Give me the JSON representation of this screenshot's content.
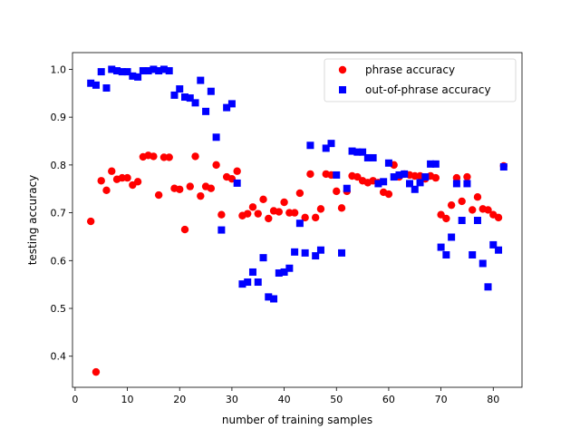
{
  "chart_data": {
    "type": "scatter",
    "xlabel": "number of training samples",
    "ylabel": "testing accuracy",
    "xlim": [
      -0.5,
      85.5
    ],
    "ylim": [
      0.335,
      1.035
    ],
    "xticks": [
      0,
      10,
      20,
      30,
      40,
      50,
      60,
      70,
      80
    ],
    "yticks": [
      0.4,
      0.5,
      0.6,
      0.7,
      0.8,
      0.9,
      1.0
    ],
    "ytick_labels": [
      "0.4",
      "0.5",
      "0.6",
      "0.7",
      "0.8",
      "0.9",
      "1.0"
    ],
    "grid": false,
    "legend_position": "top-right",
    "series": [
      {
        "name": "phrase accuracy",
        "marker": "circle",
        "color": "#ff0000",
        "points": [
          [
            3,
            0.682
          ],
          [
            4,
            0.367
          ],
          [
            5,
            0.767
          ],
          [
            6,
            0.747
          ],
          [
            7,
            0.787
          ],
          [
            8,
            0.77
          ],
          [
            9,
            0.773
          ],
          [
            10,
            0.773
          ],
          [
            11,
            0.758
          ],
          [
            12,
            0.765
          ],
          [
            13,
            0.817
          ],
          [
            14,
            0.82
          ],
          [
            15,
            0.818
          ],
          [
            16,
            0.737
          ],
          [
            17,
            0.816
          ],
          [
            18,
            0.816
          ],
          [
            19,
            0.751
          ],
          [
            20,
            0.749
          ],
          [
            21,
            0.665
          ],
          [
            22,
            0.755
          ],
          [
            23,
            0.818
          ],
          [
            24,
            0.735
          ],
          [
            25,
            0.755
          ],
          [
            26,
            0.751
          ],
          [
            27,
            0.8
          ],
          [
            28,
            0.696
          ],
          [
            29,
            0.775
          ],
          [
            30,
            0.771
          ],
          [
            31,
            0.787
          ],
          [
            32,
            0.694
          ],
          [
            33,
            0.698
          ],
          [
            34,
            0.712
          ],
          [
            35,
            0.698
          ],
          [
            36,
            0.728
          ],
          [
            37,
            0.688
          ],
          [
            38,
            0.704
          ],
          [
            39,
            0.702
          ],
          [
            40,
            0.722
          ],
          [
            41,
            0.7
          ],
          [
            42,
            0.7
          ],
          [
            43,
            0.741
          ],
          [
            44,
            0.69
          ],
          [
            45,
            0.781
          ],
          [
            46,
            0.69
          ],
          [
            47,
            0.708
          ],
          [
            48,
            0.781
          ],
          [
            49,
            0.779
          ],
          [
            50,
            0.745
          ],
          [
            51,
            0.71
          ],
          [
            52,
            0.745
          ],
          [
            53,
            0.777
          ],
          [
            54,
            0.775
          ],
          [
            55,
            0.767
          ],
          [
            56,
            0.763
          ],
          [
            57,
            0.767
          ],
          [
            58,
            0.763
          ],
          [
            59,
            0.743
          ],
          [
            60,
            0.739
          ],
          [
            61,
            0.8
          ],
          [
            62,
            0.775
          ],
          [
            63,
            0.781
          ],
          [
            64,
            0.779
          ],
          [
            65,
            0.777
          ],
          [
            66,
            0.777
          ],
          [
            67,
            0.771
          ],
          [
            68,
            0.777
          ],
          [
            69,
            0.773
          ],
          [
            70,
            0.696
          ],
          [
            71,
            0.688
          ],
          [
            72,
            0.716
          ],
          [
            73,
            0.773
          ],
          [
            74,
            0.724
          ],
          [
            75,
            0.775
          ],
          [
            76,
            0.706
          ],
          [
            77,
            0.733
          ],
          [
            78,
            0.708
          ],
          [
            79,
            0.706
          ],
          [
            80,
            0.696
          ],
          [
            81,
            0.69
          ],
          [
            82,
            0.798
          ]
        ]
      },
      {
        "name": "out-of-phrase accuracy",
        "marker": "square",
        "color": "#0000ff",
        "points": [
          [
            3,
            0.971
          ],
          [
            4,
            0.967
          ],
          [
            5,
            0.995
          ],
          [
            6,
            0.961
          ],
          [
            7,
            1.0
          ],
          [
            8,
            0.997
          ],
          [
            9,
            0.995
          ],
          [
            10,
            0.995
          ],
          [
            11,
            0.986
          ],
          [
            12,
            0.984
          ],
          [
            13,
            0.997
          ],
          [
            14,
            0.997
          ],
          [
            15,
            1.0
          ],
          [
            16,
            0.997
          ],
          [
            17,
            1.0
          ],
          [
            18,
            0.997
          ],
          [
            19,
            0.946
          ],
          [
            20,
            0.959
          ],
          [
            21,
            0.942
          ],
          [
            22,
            0.94
          ],
          [
            23,
            0.93
          ],
          [
            24,
            0.977
          ],
          [
            25,
            0.912
          ],
          [
            26,
            0.954
          ],
          [
            27,
            0.858
          ],
          [
            28,
            0.664
          ],
          [
            29,
            0.92
          ],
          [
            30,
            0.928
          ],
          [
            31,
            0.762
          ],
          [
            32,
            0.551
          ],
          [
            33,
            0.555
          ],
          [
            34,
            0.576
          ],
          [
            35,
            0.555
          ],
          [
            36,
            0.606
          ],
          [
            37,
            0.524
          ],
          [
            38,
            0.52
          ],
          [
            39,
            0.574
          ],
          [
            40,
            0.576
          ],
          [
            41,
            0.584
          ],
          [
            42,
            0.618
          ],
          [
            43,
            0.678
          ],
          [
            44,
            0.616
          ],
          [
            45,
            0.841
          ],
          [
            46,
            0.61
          ],
          [
            47,
            0.622
          ],
          [
            48,
            0.835
          ],
          [
            49,
            0.845
          ],
          [
            50,
            0.779
          ],
          [
            51,
            0.616
          ],
          [
            52,
            0.751
          ],
          [
            53,
            0.829
          ],
          [
            54,
            0.827
          ],
          [
            55,
            0.827
          ],
          [
            56,
            0.815
          ],
          [
            57,
            0.815
          ],
          [
            58,
            0.761
          ],
          [
            59,
            0.765
          ],
          [
            60,
            0.804
          ],
          [
            61,
            0.775
          ],
          [
            62,
            0.779
          ],
          [
            63,
            0.781
          ],
          [
            64,
            0.761
          ],
          [
            65,
            0.749
          ],
          [
            66,
            0.763
          ],
          [
            67,
            0.775
          ],
          [
            68,
            0.802
          ],
          [
            69,
            0.802
          ],
          [
            70,
            0.628
          ],
          [
            71,
            0.612
          ],
          [
            72,
            0.649
          ],
          [
            73,
            0.761
          ],
          [
            74,
            0.684
          ],
          [
            75,
            0.761
          ],
          [
            76,
            0.612
          ],
          [
            77,
            0.684
          ],
          [
            78,
            0.594
          ],
          [
            79,
            0.545
          ],
          [
            80,
            0.633
          ],
          [
            81,
            0.622
          ],
          [
            82,
            0.796
          ]
        ]
      }
    ]
  }
}
